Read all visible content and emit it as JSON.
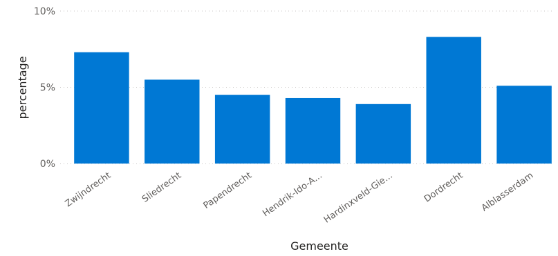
{
  "chart_data": {
    "type": "bar",
    "title": "",
    "xlabel": "Gemeente",
    "ylabel": "percentage",
    "categories": [
      "Zwijndrecht",
      "Sliedrecht",
      "Papendrecht",
      "Hendrik-Ido-A...",
      "Hardinxveld-Gie...",
      "Dordrecht",
      "Alblasserdam"
    ],
    "values": [
      7.3,
      5.5,
      4.5,
      4.3,
      3.9,
      8.3,
      5.1
    ],
    "ylim": [
      0,
      10
    ],
    "yticks": [
      {
        "value": 0,
        "label": "0%"
      },
      {
        "value": 5,
        "label": "5%"
      },
      {
        "value": 10,
        "label": "10%"
      }
    ],
    "bar_color": "#0078d4",
    "grid": true,
    "legend": "none"
  }
}
